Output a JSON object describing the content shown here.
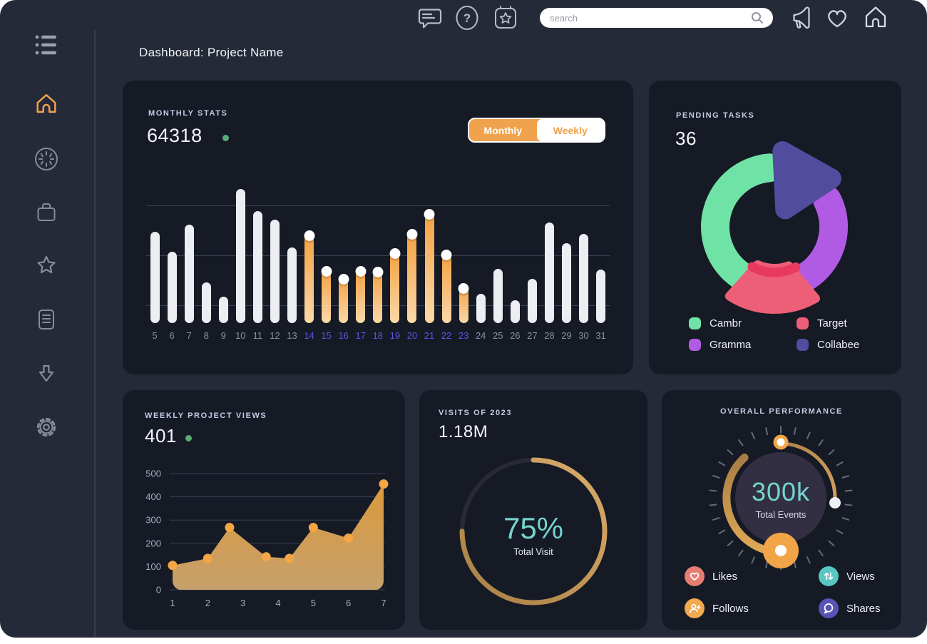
{
  "page": {
    "title": "Dashboard: Project Name"
  },
  "topbar": {
    "search": {
      "placeholder": "search"
    },
    "icons": [
      "chat-icon",
      "help-icon",
      "calendar-star-icon",
      "megaphone-icon",
      "heart-icon",
      "home-icon"
    ]
  },
  "sidebar": {
    "icons": [
      "menu-list-icon",
      "home-icon",
      "spinner-clock-icon",
      "briefcase-icon",
      "star-icon",
      "document-icon",
      "arrow-down-icon",
      "gear-icon"
    ],
    "active_icon": "home-icon",
    "active_color": "#f0a24d"
  },
  "colors": {
    "background": "#252a38",
    "card": "#151a25",
    "accent_orange": "#f0a24d",
    "teal": "#74d4d0",
    "green_dot": "#57ad75",
    "highlight_label": "#5c55e0"
  },
  "cards": {
    "monthly_stats": {
      "label": "MONTHLY STATS",
      "value": "64318",
      "toggle": {
        "monthly": "Monthly",
        "weekly": "Weekly",
        "selected": "Monthly"
      },
      "chart_data": {
        "type": "bar",
        "categories": [
          "5",
          "6",
          "7",
          "8",
          "9",
          "10",
          "11",
          "12",
          "13",
          "14",
          "15",
          "16",
          "17",
          "18",
          "19",
          "20",
          "21",
          "22",
          "23",
          "24",
          "25",
          "26",
          "27",
          "28",
          "29",
          "30",
          "31"
        ],
        "values": [
          128,
          100,
          138,
          57,
          37,
          188,
          157,
          145,
          106,
          126,
          76,
          65,
          76,
          75,
          101,
          128,
          156,
          99,
          52,
          41,
          76,
          32,
          62,
          141,
          112,
          125,
          75
        ],
        "highlight_days": [
          14,
          23
        ],
        "bar_color": "#edeef3",
        "highlight_gradient": [
          "#f4a13f",
          "#fbd9a6"
        ],
        "grid": true
      }
    },
    "pending_tasks": {
      "label": "PENDING TASKS",
      "value": "36",
      "chart_data": {
        "type": "pie",
        "slices": [
          {
            "name": "Cambr",
            "percent": 41,
            "color": "#6fe3a5"
          },
          {
            "name": "Collabee",
            "percent": 18,
            "color": "#514c9e"
          },
          {
            "name": "Gramma",
            "percent": 25,
            "color": "#b15be4"
          },
          {
            "name": "Target",
            "percent": 16,
            "color": "#ed5e77"
          }
        ],
        "colors": {
          "cambr": "#6fe3a5",
          "gramma": "#b15be4",
          "target": "#ed5e77",
          "target_dark": "#e8395e",
          "collabee": "#514c9e"
        }
      },
      "legend": [
        {
          "label": "Cambr",
          "color": "#6fe3a5"
        },
        {
          "label": "Target",
          "color": "#ed5e77"
        },
        {
          "label": "Gramma",
          "color": "#b15be4"
        },
        {
          "label": "Collabee",
          "color": "#514c9e"
        }
      ]
    },
    "weekly_views": {
      "label": "WEEKLY PROJECT VIEWS",
      "value": "401",
      "chart_data": {
        "type": "area",
        "x": [
          1,
          2,
          2.62,
          3.66,
          4.32,
          5,
          6,
          7
        ],
        "y": [
          105,
          135,
          268,
          142,
          135,
          268,
          222,
          455
        ],
        "x_ticks": [
          "1",
          "2",
          "3",
          "4",
          "5",
          "6",
          "7"
        ],
        "y_ticks": [
          0,
          100,
          200,
          300,
          400,
          500
        ],
        "ylim": [
          0,
          500
        ],
        "area_color": "#e6a03e",
        "dot_color": "#f4a644",
        "grid": true
      }
    },
    "visits": {
      "label": "VISITS OF 2023",
      "value": "1.18M",
      "chart_data": {
        "type": "donut-progress",
        "percent": 75,
        "center": "75%",
        "caption": "Total Visit",
        "ring_color": "#c99a55",
        "center_color": "#74d4d0"
      }
    },
    "performance": {
      "label": "OVERALL PERFORMANCE",
      "chart_data": {
        "type": "gauge",
        "center_value": "300k",
        "center_caption": "Total Events",
        "arcs": [
          {
            "from_deg": 0,
            "to_deg": 95,
            "thickness": "thin"
          },
          {
            "from_deg": 180,
            "to_deg": 318,
            "thickness": "thick"
          }
        ],
        "knob_color": "#f1a546"
      },
      "legend": [
        {
          "label": "Likes",
          "color": "#e57e70",
          "icon": "heart-icon"
        },
        {
          "label": "Views",
          "color": "#58c7c3",
          "icon": "arrows-up-down-icon"
        },
        {
          "label": "Follows",
          "color": "#f2a950",
          "icon": "person-plus-icon"
        },
        {
          "label": "Shares",
          "color": "#5a52b5",
          "icon": "chat-bubble-icon"
        }
      ]
    }
  }
}
